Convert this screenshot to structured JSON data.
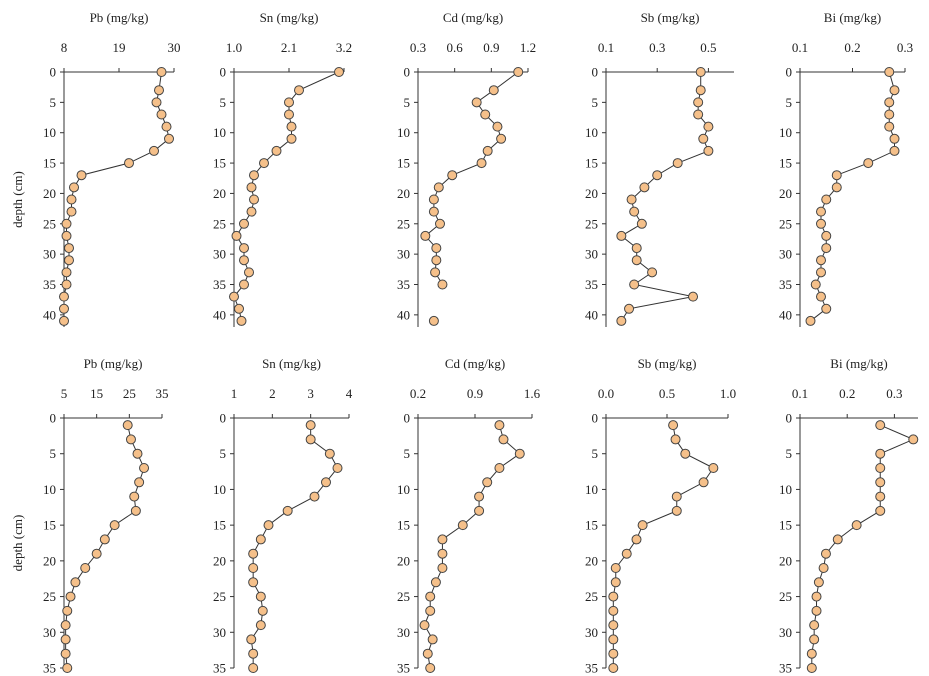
{
  "chart_data": [
    {
      "type": "line",
      "title": "Pb (mg/kg)",
      "ylabel": "depth (cm)",
      "xlim": [
        8,
        30
      ],
      "xticks": [
        8,
        19,
        30
      ],
      "ylim": [
        0,
        42
      ],
      "yticks": [
        0,
        5,
        10,
        15,
        20,
        25,
        30,
        35,
        40
      ],
      "color": "#f5c08a",
      "y": [
        0,
        3,
        5,
        7,
        9,
        11,
        13,
        15,
        17,
        19,
        21,
        23,
        25,
        27,
        29,
        31,
        33,
        35,
        37,
        39,
        41
      ],
      "x": [
        27.5,
        27,
        26.5,
        27.5,
        28.5,
        29,
        26,
        21,
        11.5,
        10,
        9.5,
        9.5,
        8.5,
        8.5,
        9,
        9,
        8.5,
        8.5,
        8,
        8,
        8
      ]
    },
    {
      "type": "line",
      "title": "Sn (mg/kg)",
      "xlim": [
        1,
        3.2
      ],
      "xticks": [
        {
          "value": 1,
          "label": "1.0"
        },
        2.1,
        3.2
      ],
      "ylim": [
        0,
        42
      ],
      "yticks": [
        0,
        5,
        10,
        15,
        20,
        25,
        30,
        35,
        40
      ],
      "color": "#f5c08a",
      "y": [
        0,
        3,
        5,
        7,
        9,
        11,
        13,
        15,
        17,
        19,
        21,
        23,
        25,
        27,
        29,
        31,
        33,
        35,
        37,
        39,
        41
      ],
      "x": [
        3.1,
        2.3,
        2.1,
        2.1,
        2.15,
        2.15,
        1.85,
        1.6,
        1.4,
        1.35,
        1.4,
        1.35,
        1.2,
        1.05,
        1.2,
        1.2,
        1.3,
        1.2,
        1.0,
        1.1,
        1.15
      ]
    },
    {
      "type": "line",
      "title": "Cd (mg/kg)",
      "xlim": [
        0.3,
        1.2
      ],
      "xticks": [
        0.3,
        0.6,
        0.9,
        1.2
      ],
      "ylim": [
        0,
        42
      ],
      "yticks": [
        0,
        5,
        10,
        15,
        20,
        25,
        30,
        35,
        40
      ],
      "color": "#f5c08a",
      "y": [
        0,
        3,
        5,
        7,
        9,
        11,
        13,
        15,
        17,
        19,
        21,
        23,
        25,
        27,
        29,
        31,
        33,
        35,
        null,
        null,
        41
      ],
      "x": [
        1.12,
        0.92,
        0.78,
        0.85,
        0.95,
        0.98,
        0.87,
        0.82,
        0.58,
        0.47,
        0.43,
        0.43,
        0.48,
        0.36,
        0.45,
        0.45,
        0.44,
        0.5,
        null,
        null,
        0.43
      ]
    },
    {
      "type": "line",
      "title": "Sb (mg/kg)",
      "xlim": [
        0.1,
        0.6
      ],
      "xticks": [
        0.1,
        0.3,
        0.5
      ],
      "ylim": [
        0,
        42
      ],
      "yticks": [
        0,
        5,
        10,
        15,
        20,
        25,
        30,
        35,
        40
      ],
      "color": "#f5c08a",
      "y": [
        0,
        3,
        5,
        7,
        9,
        11,
        13,
        15,
        17,
        19,
        21,
        23,
        25,
        27,
        29,
        31,
        33,
        35,
        37,
        39,
        41
      ],
      "x": [
        0.47,
        0.47,
        0.46,
        0.46,
        0.5,
        0.48,
        0.5,
        0.38,
        0.3,
        0.25,
        0.2,
        0.21,
        0.24,
        0.16,
        0.22,
        0.22,
        0.28,
        0.21,
        0.44,
        0.19,
        0.16
      ]
    },
    {
      "type": "line",
      "title": "Bi (mg/kg)",
      "xlim": [
        0.1,
        0.3
      ],
      "xticks": [
        0.1,
        0.2,
        0.3
      ],
      "ylim": [
        0,
        42
      ],
      "yticks": [
        0,
        5,
        10,
        15,
        20,
        25,
        30,
        35,
        40
      ],
      "color": "#f5c08a",
      "y": [
        0,
        3,
        5,
        7,
        9,
        11,
        13,
        15,
        17,
        19,
        21,
        23,
        25,
        27,
        29,
        31,
        33,
        35,
        37,
        39,
        41
      ],
      "x": [
        0.27,
        0.28,
        0.27,
        0.27,
        0.27,
        0.28,
        0.28,
        0.23,
        0.17,
        0.17,
        0.15,
        0.14,
        0.14,
        0.15,
        0.15,
        0.14,
        0.14,
        0.13,
        0.14,
        0.15,
        0.12
      ]
    },
    {
      "type": "line",
      "title": "Pb (mg/kg)",
      "ylabel": "depth (cm)",
      "xlim": [
        5,
        35
      ],
      "xticks": [
        5,
        15,
        25,
        35
      ],
      "ylim": [
        0,
        35
      ],
      "yticks": [
        0,
        5,
        10,
        15,
        20,
        25,
        30,
        35
      ],
      "color": "#f5c08a",
      "y": [
        1,
        3,
        5,
        7,
        9,
        11,
        13,
        15,
        17,
        19,
        21,
        23,
        25,
        27,
        29,
        31,
        33,
        35
      ],
      "x": [
        24.5,
        25.5,
        27.5,
        29.5,
        28,
        26.5,
        27,
        20.5,
        17.5,
        15,
        11.5,
        8.5,
        7,
        6,
        5.5,
        5.5,
        5.5,
        6
      ]
    },
    {
      "type": "line",
      "title": "Sn (mg/kg)",
      "xlim": [
        1,
        4
      ],
      "xticks": [
        1,
        2,
        3,
        4
      ],
      "ylim": [
        0,
        35
      ],
      "yticks": [
        0,
        5,
        10,
        15,
        20,
        25,
        30,
        35
      ],
      "color": "#f5c08a",
      "y": [
        1,
        3,
        5,
        7,
        9,
        11,
        13,
        15,
        17,
        19,
        21,
        23,
        25,
        27,
        29,
        31,
        33,
        35
      ],
      "x": [
        3.0,
        3.0,
        3.5,
        3.7,
        3.4,
        3.1,
        2.4,
        1.9,
        1.7,
        1.5,
        1.5,
        1.5,
        1.7,
        1.75,
        1.7,
        1.45,
        1.5,
        1.5
      ]
    },
    {
      "type": "line",
      "title": "Cd (mg/kg)",
      "xlim": [
        0.2,
        1.6
      ],
      "xticks": [
        0.2,
        0.9,
        1.6
      ],
      "ylim": [
        0,
        35
      ],
      "yticks": [
        0,
        5,
        10,
        15,
        20,
        25,
        30,
        35
      ],
      "color": "#f5c08a",
      "y": [
        1,
        3,
        5,
        7,
        9,
        11,
        13,
        15,
        17,
        19,
        21,
        23,
        25,
        27,
        29,
        31,
        33,
        35
      ],
      "x": [
        1.2,
        1.25,
        1.45,
        1.2,
        1.05,
        0.95,
        0.95,
        0.75,
        0.5,
        0.5,
        0.5,
        0.42,
        0.35,
        0.35,
        0.28,
        0.38,
        0.32,
        0.35
      ]
    },
    {
      "type": "line",
      "title": "Sb (mg/kg)",
      "xlim": [
        0,
        1
      ],
      "xticks": [
        {
          "value": 0,
          "label": "0.0"
        },
        0.5,
        {
          "value": 1,
          "label": "1.0"
        }
      ],
      "ylim": [
        0,
        35
      ],
      "yticks": [
        0,
        5,
        10,
        15,
        20,
        25,
        30,
        35
      ],
      "color": "#f5c08a",
      "y": [
        1,
        3,
        5,
        7,
        9,
        11,
        13,
        15,
        17,
        19,
        21,
        23,
        25,
        27,
        29,
        31,
        33,
        35
      ],
      "x": [
        0.55,
        0.57,
        0.65,
        0.88,
        0.8,
        0.58,
        0.58,
        0.3,
        0.25,
        0.17,
        0.08,
        0.08,
        0.06,
        0.06,
        0.06,
        0.06,
        0.06,
        0.06
      ]
    },
    {
      "type": "line",
      "title": "Bi (mg/kg)",
      "xlim": [
        0.1,
        0.35
      ],
      "xticks": [
        0.1,
        0.2,
        0.3
      ],
      "ylim": [
        0,
        35
      ],
      "yticks": [
        0,
        5,
        10,
        15,
        20,
        25,
        30,
        35
      ],
      "color": "#f5c08a",
      "y": [
        1,
        3,
        5,
        7,
        9,
        11,
        13,
        15,
        17,
        19,
        21,
        23,
        25,
        27,
        29,
        31,
        33,
        35
      ],
      "x": [
        0.27,
        0.34,
        0.27,
        0.27,
        0.27,
        0.27,
        0.27,
        0.22,
        0.18,
        0.155,
        0.15,
        0.14,
        0.135,
        0.135,
        0.13,
        0.13,
        0.125,
        0.125
      ]
    }
  ]
}
